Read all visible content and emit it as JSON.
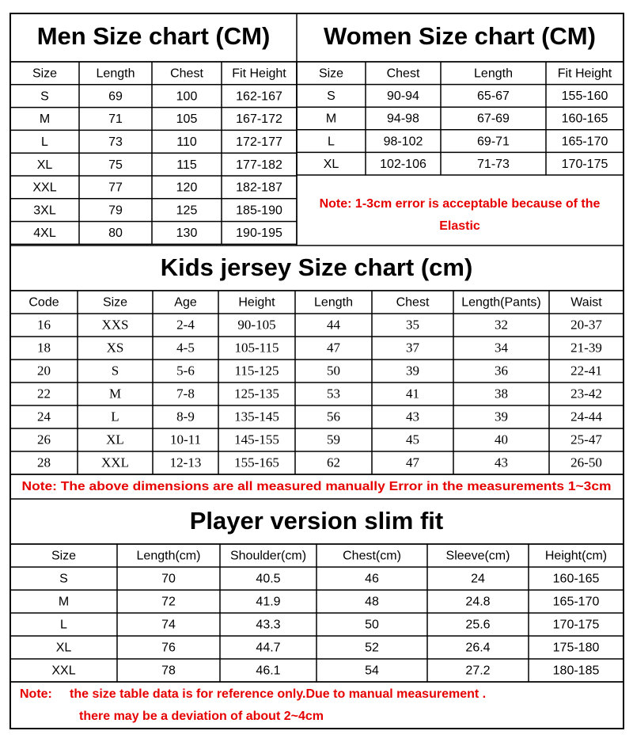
{
  "men": {
    "title": "Men Size chart (CM)",
    "headers": [
      "Size",
      "Length",
      "Chest",
      "Fit Height"
    ],
    "rows": [
      [
        "S",
        69,
        100,
        "162-167"
      ],
      [
        "M",
        71,
        105,
        "167-172"
      ],
      [
        "L",
        73,
        110,
        "172-177"
      ],
      [
        "XL",
        75,
        115,
        "177-182"
      ],
      [
        "XXL",
        77,
        120,
        "182-187"
      ],
      [
        "3XL",
        79,
        125,
        "185-190"
      ],
      [
        "4XL",
        80,
        130,
        "190-195"
      ]
    ]
  },
  "women": {
    "title": "Women Size chart (CM)",
    "headers": [
      "Size",
      "Chest",
      "Length",
      "Fit Height"
    ],
    "rows": [
      [
        "S",
        "90-94",
        "65-67",
        "155-160"
      ],
      [
        "M",
        "94-98",
        "67-69",
        "160-165"
      ],
      [
        "L",
        "98-102",
        "69-71",
        "165-170"
      ],
      [
        "XL",
        "102-106",
        "71-73",
        "170-175"
      ]
    ],
    "note": [
      "Note: 1-3cm error is acceptable because of the",
      "Elastic"
    ]
  },
  "kids": {
    "title": "Kids jersey Size chart (cm)",
    "headers": [
      "Code",
      "Size",
      "Age",
      "Height",
      "Length",
      "Chest",
      "Length(Pants)",
      "Waist"
    ],
    "rows": [
      [
        16,
        "XXS",
        "2-4",
        "90-105",
        44,
        35,
        32,
        "20-37"
      ],
      [
        18,
        "XS",
        "4-5",
        "105-115",
        47,
        37,
        34,
        "21-39"
      ],
      [
        20,
        "S",
        "5-6",
        "115-125",
        50,
        39,
        36,
        "22-41"
      ],
      [
        22,
        "M",
        "7-8",
        "125-135",
        53,
        41,
        38,
        "23-42"
      ],
      [
        24,
        "L",
        "8-9",
        "135-145",
        56,
        43,
        39,
        "24-44"
      ],
      [
        26,
        "XL",
        "10-11",
        "145-155",
        59,
        45,
        40,
        "25-47"
      ],
      [
        28,
        "XXL",
        "12-13",
        "155-165",
        62,
        47,
        43,
        "26-50"
      ]
    ],
    "note": "Note: The above dimensions are all measured manually Error in the measurements 1~3cm"
  },
  "player": {
    "title": "Player version slim fit",
    "headers": [
      "Size",
      "Length(cm)",
      "Shoulder(cm)",
      "Chest(cm)",
      "Sleeve(cm)",
      "Height(cm)"
    ],
    "rows": [
      [
        "S",
        70,
        40.5,
        46,
        24,
        "160-165"
      ],
      [
        "M",
        72,
        41.9,
        48,
        24.8,
        "165-170"
      ],
      [
        "L",
        74,
        43.3,
        50,
        25.6,
        "170-175"
      ],
      [
        "XL",
        76,
        44.7,
        52,
        26.4,
        "175-180"
      ],
      [
        "XXL",
        78,
        46.1,
        54,
        27.2,
        "180-185"
      ]
    ],
    "note_label": "Note:",
    "note": [
      "the size table data is for reference only.Due to manual measurement .",
      "there may be a deviation of about 2~4cm"
    ]
  }
}
